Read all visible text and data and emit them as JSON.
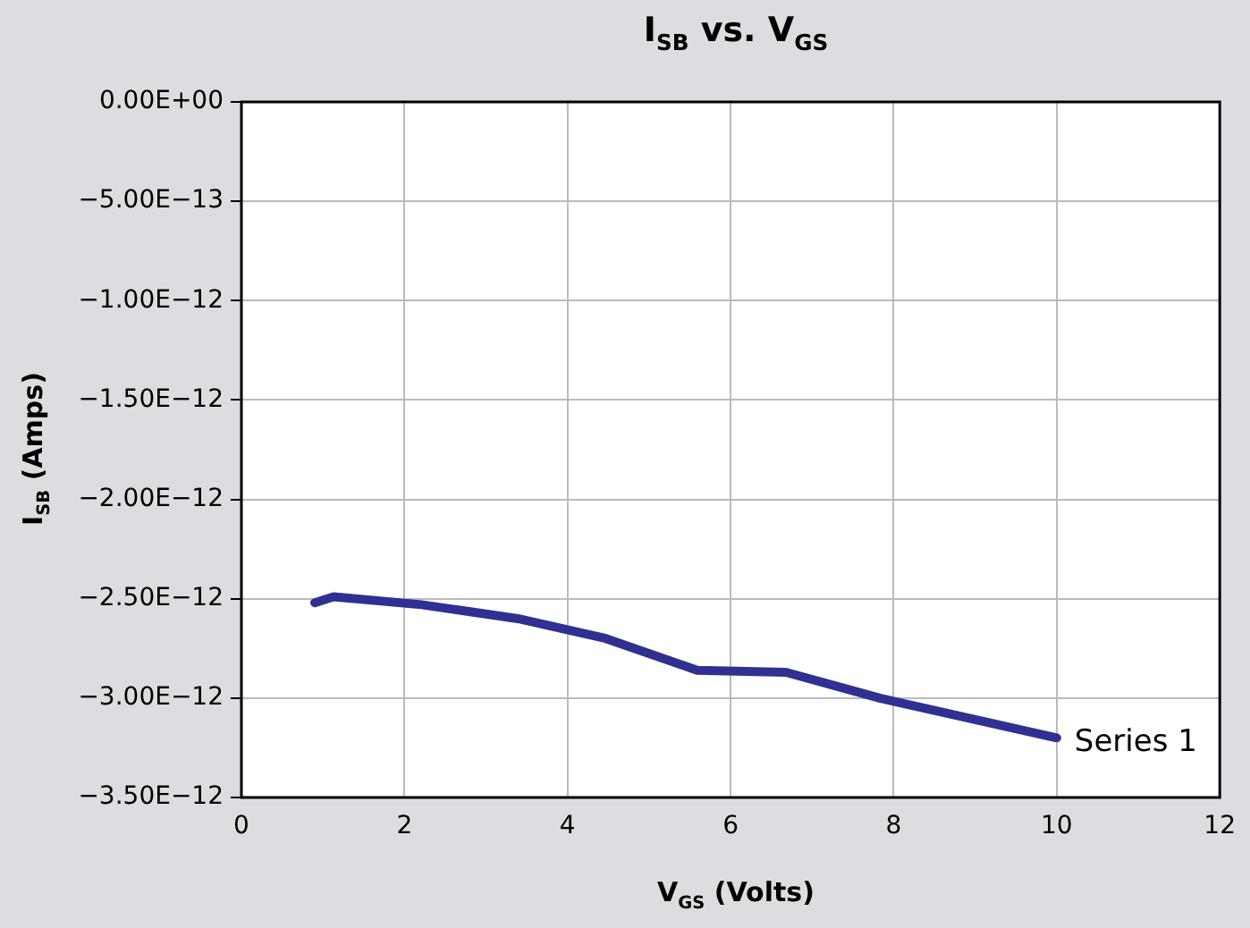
{
  "chart_data": {
    "type": "line",
    "title": "I$_{SB}$ vs. V$_{GS}$",
    "xlabel": "V$_{GS}$ (Volts)",
    "ylabel": "I$_{SB}$ (Amps)",
    "xlim": [
      0,
      12
    ],
    "xticks": [
      0,
      2,
      4,
      6,
      8,
      10,
      12
    ],
    "ylim": [
      -3.5e-12,
      0
    ],
    "yticks": [
      {
        "value": 0,
        "label": "0.00E+00"
      },
      {
        "value": -5e-13,
        "label": "−5.00E−13"
      },
      {
        "value": -1e-12,
        "label": "−1.00E−12"
      },
      {
        "value": -1.5e-12,
        "label": "−1.50E−12"
      },
      {
        "value": -2e-12,
        "label": "−2.00E−12"
      },
      {
        "value": -2.5e-12,
        "label": "−2.50E−12"
      },
      {
        "value": -3e-12,
        "label": "−3.00E−12"
      },
      {
        "value": -3.5e-12,
        "label": "−3.50E−12"
      }
    ],
    "grid": true,
    "legend": false,
    "marker": "none",
    "line_style": "solid",
    "series": [
      {
        "name": "Series 1",
        "color": "#2e3192",
        "x": [
          0.9,
          1.13,
          2.21,
          3.39,
          4.47,
          5.59,
          6.68,
          7.83,
          10.0
        ],
        "values": [
          -2.52e-12,
          -2.49e-12,
          -2.53e-12,
          -2.6e-12,
          -2.7e-12,
          -2.86e-12,
          -2.87e-12,
          -3e-12,
          -3.2e-12
        ]
      }
    ]
  }
}
